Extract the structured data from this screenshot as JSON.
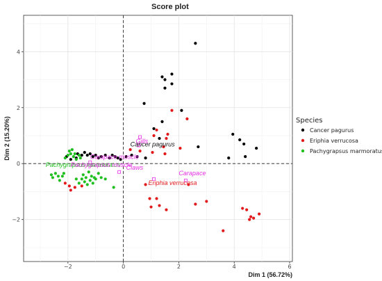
{
  "chart_data": {
    "type": "scatter",
    "title": "Score plot",
    "xlabel": "Dim 1 (56.72%)",
    "ylabel": "Dim 2 (15.20%)",
    "xlim": [
      -3.6,
      6.1
    ],
    "ylim": [
      -3.5,
      5.3
    ],
    "x_ticks": [
      -2,
      0,
      2,
      4,
      6
    ],
    "y_ticks": [
      -2,
      0,
      2,
      4
    ],
    "grid": true,
    "reference_lines": {
      "x": 0,
      "y": 0,
      "style": "dashed"
    },
    "legend": {
      "title": "Species",
      "placement": "right",
      "entries": [
        {
          "name": "Cancer pagurus",
          "color": "#000000"
        },
        {
          "name": "Eriphia verrucosa",
          "color": "#e31a1c"
        },
        {
          "name": "Pachygrapsus marmoratus",
          "color": "#1fbf1f"
        }
      ]
    },
    "series": [
      {
        "name": "Cancer pagurus",
        "color": "#000000",
        "points": [
          [
            -2.05,
            0.25
          ],
          [
            -1.9,
            0.15
          ],
          [
            -1.7,
            0.2
          ],
          [
            -1.65,
            0.35
          ],
          [
            -1.5,
            0.3
          ],
          [
            -1.4,
            0.4
          ],
          [
            -1.3,
            0.3
          ],
          [
            -1.2,
            0.35
          ],
          [
            -1.1,
            0.25
          ],
          [
            -1.0,
            0.3
          ],
          [
            -0.9,
            0.2
          ],
          [
            -0.8,
            0.25
          ],
          [
            -0.65,
            0.3
          ],
          [
            -0.5,
            0.2
          ],
          [
            -0.4,
            0.3
          ],
          [
            -0.3,
            0.25
          ],
          [
            -0.2,
            0.2
          ],
          [
            -0.1,
            0.15
          ],
          [
            0.1,
            0.25
          ],
          [
            0.3,
            0.3
          ],
          [
            0.5,
            0.25
          ],
          [
            0.8,
            0.2
          ],
          [
            0.75,
            2.15
          ],
          [
            1.1,
            1.25
          ],
          [
            1.3,
            0.9
          ],
          [
            1.4,
            3.1
          ],
          [
            1.5,
            3.0
          ],
          [
            1.5,
            2.7
          ],
          [
            1.75,
            2.85
          ],
          [
            1.75,
            3.2
          ],
          [
            1.4,
            1.5
          ],
          [
            2.1,
            1.9
          ],
          [
            2.6,
            4.3
          ],
          [
            2.7,
            0.6
          ],
          [
            3.8,
            0.2
          ],
          [
            3.95,
            1.05
          ],
          [
            4.2,
            0.85
          ],
          [
            4.35,
            0.7
          ],
          [
            4.4,
            0.25
          ],
          [
            4.8,
            0.55
          ]
        ]
      },
      {
        "name": "Eriphia verrucosa",
        "color": "#e31a1c",
        "points": [
          [
            -2.1,
            -0.7
          ],
          [
            -1.95,
            -0.8
          ],
          [
            -1.9,
            -0.95
          ],
          [
            -1.75,
            -0.85
          ],
          [
            -1.5,
            -0.8
          ],
          [
            0.25,
            0.5
          ],
          [
            0.6,
            0.45
          ],
          [
            1.05,
            0.4
          ],
          [
            1.1,
            1.0
          ],
          [
            1.2,
            1.2
          ],
          [
            1.45,
            0.6
          ],
          [
            1.5,
            0.35
          ],
          [
            1.55,
            0.9
          ],
          [
            1.6,
            1.05
          ],
          [
            1.75,
            1.9
          ],
          [
            2.05,
            0.55
          ],
          [
            2.3,
            1.6
          ],
          [
            0.8,
            -0.75
          ],
          [
            1.2,
            -1.25
          ],
          [
            1.3,
            -1.5
          ],
          [
            1.55,
            -1.65
          ],
          [
            0.95,
            -1.25
          ],
          [
            1.0,
            -1.55
          ],
          [
            2.6,
            -1.45
          ],
          [
            3.0,
            -1.35
          ],
          [
            4.3,
            -1.6
          ],
          [
            4.45,
            -1.65
          ],
          [
            4.55,
            -2.0
          ],
          [
            4.7,
            -1.95
          ],
          [
            4.9,
            -1.8
          ],
          [
            4.6,
            -1.9
          ],
          [
            3.6,
            -2.4
          ],
          [
            2.35,
            -0.75
          ]
        ]
      },
      {
        "name": "Pachygrapsus marmoratus",
        "color": "#1fbf1f",
        "points": [
          [
            -2.6,
            -0.4
          ],
          [
            -2.55,
            -0.5
          ],
          [
            -2.45,
            -0.35
          ],
          [
            -2.35,
            -0.45
          ],
          [
            -2.3,
            -0.6
          ],
          [
            -2.2,
            -0.45
          ],
          [
            -2.15,
            -0.35
          ],
          [
            -2.1,
            0.2
          ],
          [
            -2.0,
            0.3
          ],
          [
            -1.95,
            0.45
          ],
          [
            -1.9,
            0.35
          ],
          [
            -1.85,
            0.5
          ],
          [
            -1.8,
            0.25
          ],
          [
            -1.75,
            0.35
          ],
          [
            -1.7,
            0.15
          ],
          [
            -1.6,
            0.3
          ],
          [
            -1.55,
            0.2
          ],
          [
            -1.5,
            -0.55
          ],
          [
            -1.45,
            -0.4
          ],
          [
            -1.4,
            -0.65
          ],
          [
            -1.35,
            -0.5
          ],
          [
            -1.25,
            -0.3
          ],
          [
            -1.2,
            -0.6
          ],
          [
            -1.15,
            -0.45
          ],
          [
            -1.1,
            -0.7
          ],
          [
            -1.05,
            -0.5
          ],
          [
            -1.0,
            -0.55
          ],
          [
            -0.9,
            -0.35
          ],
          [
            -0.8,
            -0.5
          ],
          [
            -0.65,
            -0.55
          ],
          [
            -1.7,
            -0.55
          ],
          [
            -1.6,
            -0.7
          ],
          [
            -1.3,
            -0.75
          ],
          [
            -0.35,
            -0.85
          ]
        ]
      }
    ],
    "annotations": [
      {
        "text": "Cancer pagurus",
        "x": 0.25,
        "y": 0.62,
        "color": "#111111"
      },
      {
        "text": "Pachygrapsus marmoratus",
        "x": -2.8,
        "y": -0.12,
        "color": "#1fbf1f"
      },
      {
        "text": "Eriphia verrucosa",
        "x": 0.9,
        "y": -0.77,
        "color": "#e31a1c"
      },
      {
        "text": "Gills",
        "x": 0.45,
        "y": 0.72,
        "color": "#e62ee6"
      },
      {
        "text": "Carapace muscle",
        "x": -1.2,
        "y": 0.17,
        "color": "#e62ee6"
      },
      {
        "text": "Pachygrapsus muscle",
        "x": -1.9,
        "y": -0.12,
        "color": "#e62ee6"
      },
      {
        "text": "Claws",
        "x": 0.1,
        "y": -0.22,
        "color": "#e62ee6"
      },
      {
        "text": "Carapace",
        "x": 2.0,
        "y": -0.42,
        "color": "#e62ee6"
      }
    ],
    "centroid_markers": {
      "color": "#e62ee6",
      "points": [
        [
          0.6,
          0.95
        ],
        [
          0.55,
          0.65
        ],
        [
          -1.2,
          0.05
        ],
        [
          -0.15,
          -0.3
        ],
        [
          1.1,
          -0.55
        ],
        [
          2.25,
          -0.6
        ]
      ]
    }
  }
}
